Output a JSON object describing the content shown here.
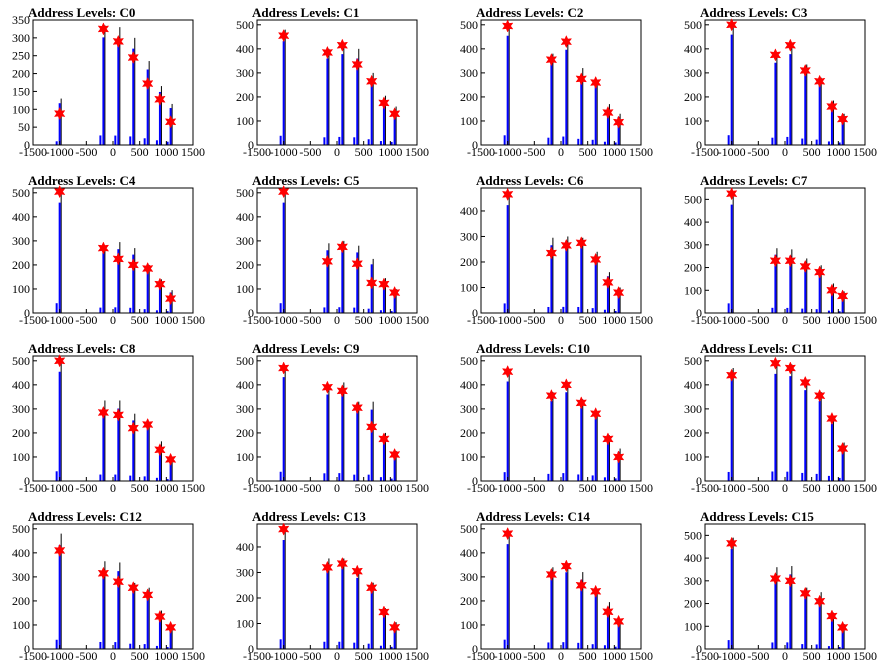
{
  "figure": {
    "colors": {
      "histogram": "#0000ff",
      "peak_marker": "#ff0000",
      "outline": "#000000"
    }
  },
  "chart_data": [
    {
      "type": "bar",
      "title": "Address Levels: C0",
      "xlim": [
        -1500,
        1500
      ],
      "ylim": [
        0,
        350
      ],
      "x_ticks": [
        "-1500",
        "-1000",
        "-500",
        "0",
        "500",
        "1000",
        "1500"
      ],
      "y_ticks": [
        "0",
        "50",
        "100",
        "150",
        "200",
        "250",
        "300",
        "350"
      ],
      "peaks": [
        {
          "x": -1000,
          "y": 88,
          "h": 130
        },
        {
          "x": -180,
          "y": 325,
          "h": 335
        },
        {
          "x": 100,
          "y": 290,
          "h": 330
        },
        {
          "x": 380,
          "y": 245,
          "h": 300
        },
        {
          "x": 650,
          "y": 172,
          "h": 235
        },
        {
          "x": 880,
          "y": 128,
          "h": 165
        },
        {
          "x": 1080,
          "y": 65,
          "h": 115
        }
      ]
    },
    {
      "type": "bar",
      "title": "Address Levels: C1",
      "xlim": [
        -1500,
        1500
      ],
      "ylim": [
        0,
        520
      ],
      "x_ticks": [
        "-1500",
        "-1000",
        "-500",
        "0",
        "500",
        "1000",
        "1500"
      ],
      "y_ticks": [
        "0",
        "100",
        "200",
        "300",
        "400",
        "500"
      ],
      "peaks": [
        {
          "x": -1000,
          "y": 455,
          "h": 480
        },
        {
          "x": -180,
          "y": 385,
          "h": 400
        },
        {
          "x": 100,
          "y": 415,
          "h": 420
        },
        {
          "x": 380,
          "y": 335,
          "h": 400
        },
        {
          "x": 650,
          "y": 265,
          "h": 300
        },
        {
          "x": 880,
          "y": 175,
          "h": 205
        },
        {
          "x": 1080,
          "y": 130,
          "h": 160
        }
      ]
    },
    {
      "type": "bar",
      "title": "Address Levels: C2",
      "xlim": [
        -1500,
        1500
      ],
      "ylim": [
        0,
        520
      ],
      "x_ticks": [
        "-1500",
        "-1000",
        "-500",
        "0",
        "500",
        "1000",
        "1500"
      ],
      "y_ticks": [
        "0",
        "100",
        "200",
        "300",
        "400",
        "500"
      ],
      "peaks": [
        {
          "x": -1000,
          "y": 495,
          "h": 505
        },
        {
          "x": -180,
          "y": 355,
          "h": 380
        },
        {
          "x": 100,
          "y": 430,
          "h": 440
        },
        {
          "x": 380,
          "y": 275,
          "h": 320
        },
        {
          "x": 650,
          "y": 260,
          "h": 270
        },
        {
          "x": 880,
          "y": 135,
          "h": 170
        },
        {
          "x": 1080,
          "y": 95,
          "h": 130
        }
      ]
    },
    {
      "type": "bar",
      "title": "Address Levels: C3",
      "xlim": [
        -1500,
        1500
      ],
      "ylim": [
        0,
        520
      ],
      "x_ticks": [
        "-1500",
        "-1000",
        "-500",
        "0",
        "500",
        "1000",
        "1500"
      ],
      "y_ticks": [
        "0",
        "100",
        "200",
        "300",
        "400",
        "500"
      ],
      "peaks": [
        {
          "x": -1000,
          "y": 500,
          "h": 510
        },
        {
          "x": -180,
          "y": 375,
          "h": 380
        },
        {
          "x": 100,
          "y": 415,
          "h": 420
        },
        {
          "x": 380,
          "y": 310,
          "h": 335
        },
        {
          "x": 650,
          "y": 265,
          "h": 280
        },
        {
          "x": 880,
          "y": 160,
          "h": 185
        },
        {
          "x": 1080,
          "y": 108,
          "h": 130
        }
      ]
    },
    {
      "type": "bar",
      "title": "Address Levels: C4",
      "xlim": [
        -1500,
        1500
      ],
      "ylim": [
        0,
        520
      ],
      "x_ticks": [
        "-1500",
        "-1000",
        "-500",
        "0",
        "500",
        "1000",
        "1500"
      ],
      "y_ticks": [
        "0",
        "100",
        "200",
        "300",
        "400",
        "500"
      ],
      "peaks": [
        {
          "x": -1000,
          "y": 505,
          "h": 510
        },
        {
          "x": -180,
          "y": 270,
          "h": 280
        },
        {
          "x": 100,
          "y": 225,
          "h": 295
        },
        {
          "x": 380,
          "y": 200,
          "h": 270
        },
        {
          "x": 650,
          "y": 185,
          "h": 200
        },
        {
          "x": 880,
          "y": 120,
          "h": 140
        },
        {
          "x": 1080,
          "y": 60,
          "h": 95
        }
      ]
    },
    {
      "type": "bar",
      "title": "Address Levels: C5",
      "xlim": [
        -1500,
        1500
      ],
      "ylim": [
        0,
        520
      ],
      "x_ticks": [
        "-1500",
        "-1000",
        "-500",
        "0",
        "500",
        "1000",
        "1500"
      ],
      "y_ticks": [
        "0",
        "100",
        "200",
        "300",
        "400",
        "500"
      ],
      "peaks": [
        {
          "x": -1000,
          "y": 505,
          "h": 510
        },
        {
          "x": -180,
          "y": 215,
          "h": 290
        },
        {
          "x": 100,
          "y": 275,
          "h": 300
        },
        {
          "x": 380,
          "y": 205,
          "h": 280
        },
        {
          "x": 650,
          "y": 125,
          "h": 225
        },
        {
          "x": 880,
          "y": 120,
          "h": 145
        },
        {
          "x": 1080,
          "y": 85,
          "h": 100
        }
      ]
    },
    {
      "type": "bar",
      "title": "Address Levels: C6",
      "xlim": [
        -1500,
        1500
      ],
      "ylim": [
        0,
        490
      ],
      "x_ticks": [
        "-1500",
        "-1000",
        "-500",
        "0",
        "500",
        "1000",
        "1500"
      ],
      "y_ticks": [
        "0",
        "100",
        "200",
        "300",
        "400"
      ],
      "peaks": [
        {
          "x": -1000,
          "y": 465,
          "h": 470
        },
        {
          "x": -180,
          "y": 235,
          "h": 295
        },
        {
          "x": 100,
          "y": 265,
          "h": 300
        },
        {
          "x": 380,
          "y": 275,
          "h": 295
        },
        {
          "x": 650,
          "y": 210,
          "h": 240
        },
        {
          "x": 880,
          "y": 120,
          "h": 160
        },
        {
          "x": 1080,
          "y": 80,
          "h": 100
        }
      ]
    },
    {
      "type": "bar",
      "title": "Address Levels: C7",
      "xlim": [
        -1500,
        1500
      ],
      "ylim": [
        0,
        550
      ],
      "x_ticks": [
        "-1500",
        "-1000",
        "-500",
        "0",
        "500",
        "1000",
        "1500"
      ],
      "y_ticks": [
        "0",
        "100",
        "200",
        "300",
        "400",
        "500"
      ],
      "peaks": [
        {
          "x": -1000,
          "y": 525,
          "h": 530
        },
        {
          "x": -180,
          "y": 230,
          "h": 285
        },
        {
          "x": 100,
          "y": 230,
          "h": 280
        },
        {
          "x": 380,
          "y": 205,
          "h": 240
        },
        {
          "x": 650,
          "y": 180,
          "h": 210
        },
        {
          "x": 880,
          "y": 100,
          "h": 130
        },
        {
          "x": 1080,
          "y": 75,
          "h": 95
        }
      ]
    },
    {
      "type": "bar",
      "title": "Address Levels: C8",
      "xlim": [
        -1500,
        1500
      ],
      "ylim": [
        0,
        520
      ],
      "x_ticks": [
        "-1500",
        "-1000",
        "-500",
        "0",
        "500",
        "1000",
        "1500"
      ],
      "y_ticks": [
        "0",
        "100",
        "200",
        "300",
        "400",
        "500"
      ],
      "peaks": [
        {
          "x": -1000,
          "y": 500,
          "h": 505
        },
        {
          "x": -180,
          "y": 285,
          "h": 335
        },
        {
          "x": 100,
          "y": 275,
          "h": 335
        },
        {
          "x": 380,
          "y": 220,
          "h": 280
        },
        {
          "x": 650,
          "y": 235,
          "h": 240
        },
        {
          "x": 880,
          "y": 130,
          "h": 165
        },
        {
          "x": 1080,
          "y": 90,
          "h": 100
        }
      ]
    },
    {
      "type": "bar",
      "title": "Address Levels: C9",
      "xlim": [
        -1500,
        1500
      ],
      "ylim": [
        0,
        520
      ],
      "x_ticks": [
        "-1500",
        "-1000",
        "-500",
        "0",
        "500",
        "1000",
        "1500"
      ],
      "y_ticks": [
        "0",
        "100",
        "200",
        "300",
        "400",
        "500"
      ],
      "peaks": [
        {
          "x": -1000,
          "y": 470,
          "h": 480
        },
        {
          "x": -180,
          "y": 390,
          "h": 400
        },
        {
          "x": 100,
          "y": 375,
          "h": 410
        },
        {
          "x": 380,
          "y": 305,
          "h": 330
        },
        {
          "x": 650,
          "y": 225,
          "h": 330
        },
        {
          "x": 880,
          "y": 175,
          "h": 200
        },
        {
          "x": 1080,
          "y": 110,
          "h": 125
        }
      ]
    },
    {
      "type": "bar",
      "title": "Address Levels: C10",
      "xlim": [
        -1500,
        1500
      ],
      "ylim": [
        0,
        520
      ],
      "x_ticks": [
        "-1500",
        "-1000",
        "-500",
        "0",
        "500",
        "1000",
        "1500"
      ],
      "y_ticks": [
        "0",
        "100",
        "200",
        "300",
        "400",
        "500"
      ],
      "peaks": [
        {
          "x": -1000,
          "y": 455,
          "h": 460
        },
        {
          "x": -180,
          "y": 355,
          "h": 370
        },
        {
          "x": 100,
          "y": 400,
          "h": 410
        },
        {
          "x": 380,
          "y": 325,
          "h": 340
        },
        {
          "x": 650,
          "y": 280,
          "h": 290
        },
        {
          "x": 880,
          "y": 175,
          "h": 190
        },
        {
          "x": 1080,
          "y": 100,
          "h": 135
        }
      ]
    },
    {
      "type": "bar",
      "title": "Address Levels: C11",
      "xlim": [
        -1500,
        1500
      ],
      "ylim": [
        0,
        520
      ],
      "x_ticks": [
        "-1500",
        "-1000",
        "-500",
        "0",
        "500",
        "1000",
        "1500"
      ],
      "y_ticks": [
        "0",
        "100",
        "200",
        "300",
        "400",
        "500"
      ],
      "peaks": [
        {
          "x": -1000,
          "y": 440,
          "h": 470
        },
        {
          "x": -180,
          "y": 490,
          "h": 495
        },
        {
          "x": 100,
          "y": 470,
          "h": 485
        },
        {
          "x": 380,
          "y": 410,
          "h": 420
        },
        {
          "x": 650,
          "y": 355,
          "h": 370
        },
        {
          "x": 880,
          "y": 260,
          "h": 265
        },
        {
          "x": 1080,
          "y": 135,
          "h": 160
        }
      ]
    },
    {
      "type": "bar",
      "title": "Address Levels: C12",
      "xlim": [
        -1500,
        1500
      ],
      "ylim": [
        0,
        520
      ],
      "x_ticks": [
        "-1500",
        "-1000",
        "-500",
        "0",
        "500",
        "1000",
        "1500"
      ],
      "y_ticks": [
        "0",
        "100",
        "200",
        "300",
        "400",
        "500"
      ],
      "peaks": [
        {
          "x": -1000,
          "y": 410,
          "h": 480
        },
        {
          "x": -180,
          "y": 315,
          "h": 365
        },
        {
          "x": 100,
          "y": 280,
          "h": 360
        },
        {
          "x": 380,
          "y": 255,
          "h": 275
        },
        {
          "x": 650,
          "y": 225,
          "h": 255
        },
        {
          "x": 880,
          "y": 135,
          "h": 160
        },
        {
          "x": 1080,
          "y": 90,
          "h": 100
        }
      ]
    },
    {
      "type": "bar",
      "title": "Address Levels: C13",
      "xlim": [
        -1500,
        1500
      ],
      "ylim": [
        0,
        490
      ],
      "x_ticks": [
        "-1500",
        "-1000",
        "-500",
        "0",
        "500",
        "1000",
        "1500"
      ],
      "y_ticks": [
        "0",
        "100",
        "200",
        "300",
        "400"
      ],
      "peaks": [
        {
          "x": -1000,
          "y": 470,
          "h": 475
        },
        {
          "x": -180,
          "y": 320,
          "h": 355
        },
        {
          "x": 100,
          "y": 335,
          "h": 355
        },
        {
          "x": 380,
          "y": 305,
          "h": 310
        },
        {
          "x": 650,
          "y": 240,
          "h": 260
        },
        {
          "x": 880,
          "y": 145,
          "h": 160
        },
        {
          "x": 1080,
          "y": 85,
          "h": 105
        }
      ]
    },
    {
      "type": "bar",
      "title": "Address Levels: C14",
      "xlim": [
        -1500,
        1500
      ],
      "ylim": [
        0,
        520
      ],
      "x_ticks": [
        "-1500",
        "-1000",
        "-500",
        "0",
        "500",
        "1000",
        "1500"
      ],
      "y_ticks": [
        "0",
        "100",
        "200",
        "300",
        "400",
        "500"
      ],
      "peaks": [
        {
          "x": -1000,
          "y": 480,
          "h": 485
        },
        {
          "x": -180,
          "y": 310,
          "h": 340
        },
        {
          "x": 100,
          "y": 345,
          "h": 355
        },
        {
          "x": 380,
          "y": 265,
          "h": 320
        },
        {
          "x": 650,
          "y": 240,
          "h": 250
        },
        {
          "x": 880,
          "y": 155,
          "h": 195
        },
        {
          "x": 1080,
          "y": 115,
          "h": 120
        }
      ]
    },
    {
      "type": "bar",
      "title": "Address Levels: C15",
      "xlim": [
        -1500,
        1500
      ],
      "ylim": [
        0,
        550
      ],
      "x_ticks": [
        "-1500",
        "-1000",
        "-500",
        "0",
        "500",
        "1000",
        "1500"
      ],
      "y_ticks": [
        "0",
        "100",
        "200",
        "300",
        "400",
        "500"
      ],
      "peaks": [
        {
          "x": -1000,
          "y": 465,
          "h": 490
        },
        {
          "x": -180,
          "y": 310,
          "h": 360
        },
        {
          "x": 100,
          "y": 300,
          "h": 365
        },
        {
          "x": 380,
          "y": 245,
          "h": 270
        },
        {
          "x": 650,
          "y": 210,
          "h": 250
        },
        {
          "x": 880,
          "y": 145,
          "h": 160
        },
        {
          "x": 1080,
          "y": 95,
          "h": 110
        }
      ]
    }
  ]
}
